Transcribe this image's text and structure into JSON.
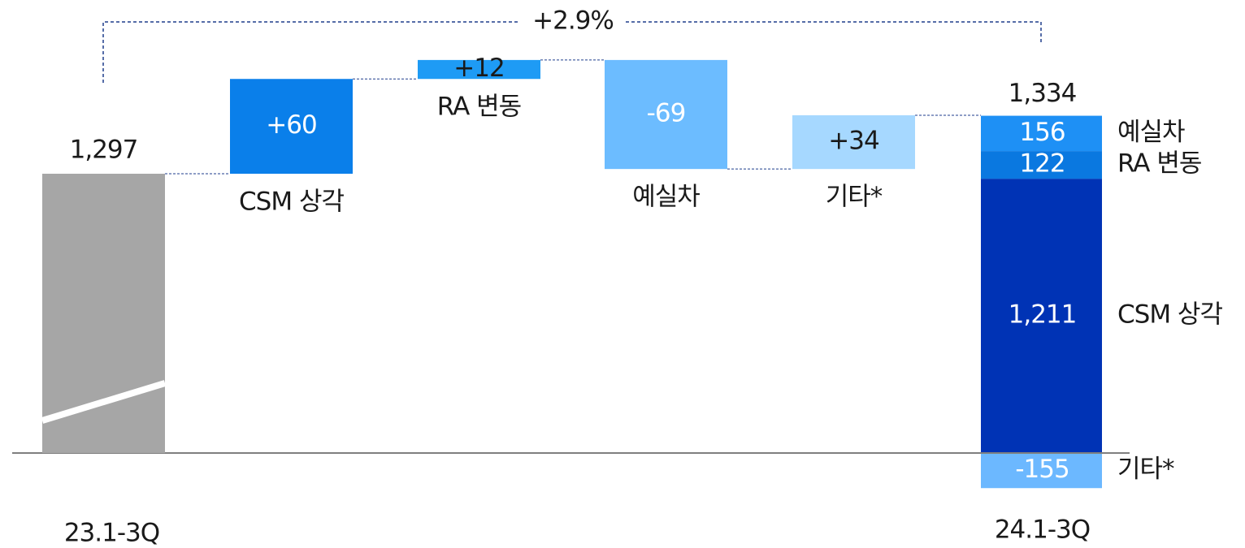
{
  "chart_data": {
    "type": "waterfall",
    "annotation": "+2.9%",
    "start": {
      "label": "23.1-3Q",
      "value": 1297,
      "value_label": "1,297",
      "color": "#a6a6a6"
    },
    "steps": {
      "categories": [
        "CSM 상각",
        "RA 변동",
        "예실차",
        "기타*"
      ],
      "values": [
        60,
        12,
        -69,
        34
      ],
      "value_labels": [
        "+60",
        "+12",
        "-69",
        "+34"
      ],
      "colors": [
        "#0a7fea",
        "#1e9bf5",
        "#6cbcff",
        "#a6d8ff"
      ]
    },
    "end": {
      "label": "24.1-3Q",
      "value": 1334,
      "value_label": "1,334",
      "components": {
        "categories": [
          "CSM 상각",
          "RA 변동",
          "예실차",
          "기타*"
        ],
        "values": [
          1211,
          122,
          156,
          -155
        ],
        "value_labels": [
          "1,211",
          "122",
          "156",
          "-155"
        ],
        "colors": [
          "#0033b5",
          "#0a78e0",
          "#1e90f5",
          "#6cb8ff"
        ]
      }
    }
  }
}
